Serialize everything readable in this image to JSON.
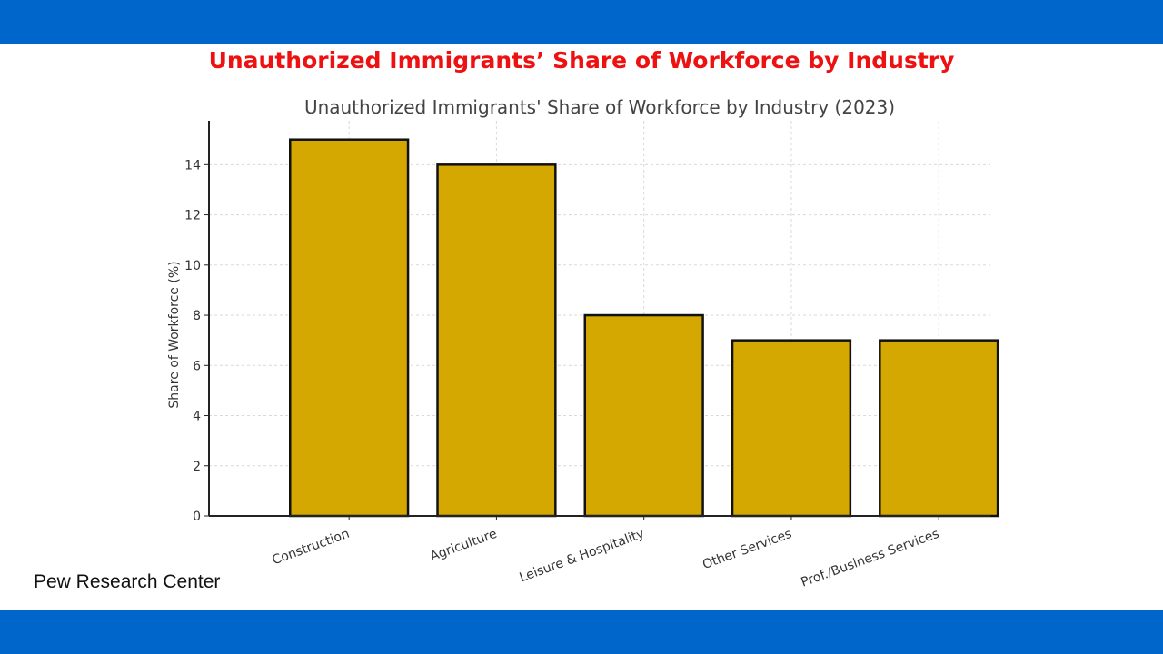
{
  "slide": {
    "title": "Unauthorized Immigrants’ Share of Workforce by Industry",
    "source": "Pew Research Center"
  },
  "colors": {
    "band": "#0066cc",
    "slide_title": "#ee1111",
    "bar_fill": "#d4a800",
    "bar_stroke": "#111111"
  },
  "chart_data": {
    "type": "bar",
    "title": "Unauthorized Immigrants' Share of Workforce by Industry (2023)",
    "xlabel": "",
    "ylabel": "Share of Workforce (%)",
    "categories": [
      "Construction",
      "Agriculture",
      "Leisure & Hospitality",
      "Other Services",
      "Prof./Business Services"
    ],
    "values": [
      15,
      14,
      8,
      7,
      7
    ],
    "ylim": [
      0,
      15.75
    ],
    "yticks": [
      0,
      2,
      4,
      6,
      8,
      10,
      12,
      14
    ],
    "grid": true,
    "legend": "none"
  }
}
